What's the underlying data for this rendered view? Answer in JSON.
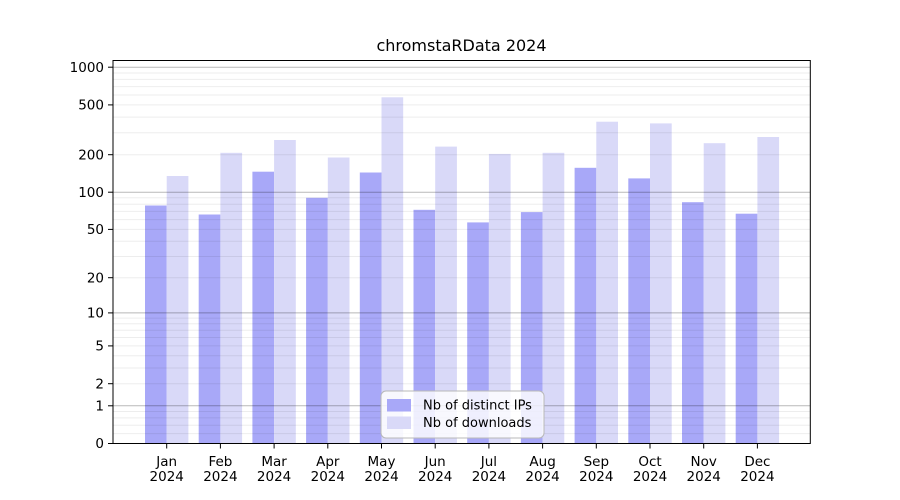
{
  "chart_data": {
    "type": "bar",
    "title": "chromstaRData 2024",
    "categories": [
      "Jan",
      "Feb",
      "Mar",
      "Apr",
      "May",
      "Jun",
      "Jul",
      "Aug",
      "Sep",
      "Oct",
      "Nov",
      "Dec"
    ],
    "category_year": "2024",
    "series": [
      {
        "name": "Nb of distinct IPs",
        "color": "#a8a8f8",
        "values": [
          78,
          66,
          146,
          90,
          144,
          72,
          57,
          69,
          157,
          129,
          83,
          67
        ]
      },
      {
        "name": "Nb of downloads",
        "color": "#d9d9f8",
        "values": [
          135,
          207,
          262,
          190,
          575,
          232,
          203,
          207,
          367,
          356,
          247,
          277
        ]
      }
    ],
    "y_scale": "log1p",
    "y_ticks": [
      0,
      1,
      2,
      5,
      10,
      20,
      50,
      100,
      200,
      500,
      1000
    ],
    "ylim": [
      0,
      1130
    ],
    "xlabel": "",
    "ylabel": "",
    "grid": true,
    "legend_position": "lower center"
  },
  "colors": {
    "bar_distinct_ips": "#a8a8f8",
    "bar_downloads": "#d9d9f8",
    "grid_minor": "rgba(0,0,0,0.07)",
    "grid_major": "rgba(0,0,0,0.28)",
    "axis": "#000000",
    "background": "#ffffff",
    "legend_bg": "rgba(255,255,255,0.82)",
    "legend_border": "#b8b8b8"
  }
}
